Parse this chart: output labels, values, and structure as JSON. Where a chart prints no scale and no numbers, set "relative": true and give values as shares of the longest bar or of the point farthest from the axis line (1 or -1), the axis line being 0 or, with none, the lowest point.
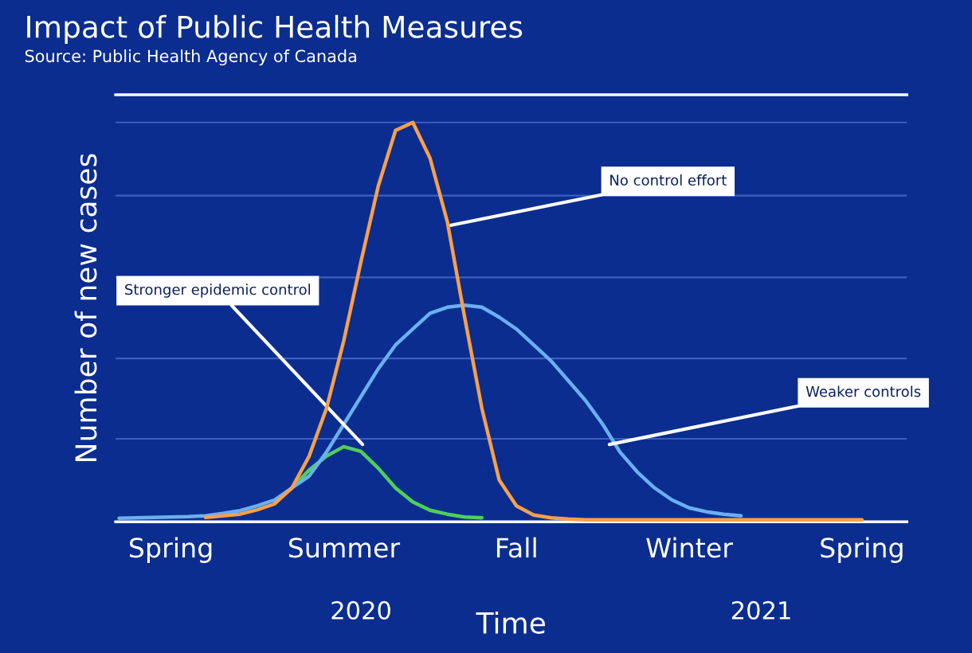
{
  "chart_data": {
    "type": "line",
    "title": "Impact of Public Health Measures",
    "subtitle": "Source: Public Health Agency of Canada",
    "xlabel": "Time",
    "ylabel": "Number of new cases",
    "relative": true,
    "legend": false,
    "ref_lines": [
      {
        "axis": "y",
        "value": 0.204,
        "color": "#3b5fc0"
      },
      {
        "axis": "y",
        "value": 0.406,
        "color": "#3b5fc0"
      },
      {
        "axis": "y",
        "value": 0.61,
        "color": "#3b5fc0"
      },
      {
        "axis": "y",
        "value": 0.816,
        "color": "#3b5fc0"
      },
      {
        "axis": "y",
        "value": 1,
        "color": "#3b5fc0"
      }
    ],
    "marker": "none",
    "line_style": "solid",
    "categories": [
      null,
      null,
      null,
      "Spring",
      null,
      null,
      null,
      null,
      null,
      null,
      null,
      null,
      null,
      "Summer",
      null,
      null,
      null,
      null,
      null,
      null,
      null,
      null,
      null,
      "Fall",
      null,
      null,
      null,
      null,
      null,
      null,
      null,
      null,
      null,
      "Winter",
      null,
      null,
      null,
      null,
      null,
      null,
      null,
      null,
      null,
      "Spring"
    ],
    "series": [
      {
        "color": "#f7a04a",
        "values": [
          null,
          null,
          null,
          null,
          null,
          0.006,
          0.01,
          0.014,
          0.025,
          0.04,
          0.08,
          0.16,
          0.28,
          0.45,
          0.65,
          0.84,
          0.98,
          1,
          0.91,
          0.75,
          0.51,
          0.28,
          0.1,
          0.035,
          0.012,
          0.005,
          0.002,
          0,
          0,
          0,
          0,
          0,
          0,
          0,
          0,
          0,
          0,
          0,
          0,
          0,
          0,
          0,
          0,
          0
        ]
      },
      {
        "color": "#6ab0f0",
        "values": [
          0.004,
          0.005,
          0.006,
          0.007,
          0.008,
          0.01,
          0.016,
          0.023,
          0.035,
          0.05,
          0.08,
          0.11,
          0.17,
          0.24,
          0.31,
          0.38,
          0.44,
          0.48,
          0.52,
          0.535,
          0.54,
          0.535,
          0.51,
          0.48,
          0.44,
          0.4,
          0.35,
          0.3,
          0.24,
          0.17,
          0.12,
          0.08,
          0.05,
          0.03,
          0.02,
          0.014,
          0.01,
          null,
          null,
          null,
          null,
          null,
          null,
          null
        ]
      },
      {
        "color": "#4fcf5a",
        "values": [
          null,
          null,
          null,
          null,
          null,
          null,
          null,
          null,
          null,
          0.046,
          0.08,
          0.125,
          0.16,
          0.184,
          0.172,
          0.13,
          0.08,
          0.045,
          0.024,
          0.014,
          0.007,
          0.005,
          null,
          null,
          null,
          null,
          null,
          null,
          null,
          null,
          null,
          null,
          null,
          null,
          null,
          null,
          null,
          null,
          null,
          null,
          null,
          null,
          null,
          null
        ]
      }
    ],
    "annotations": [
      "No control effort",
      "Weaker controls",
      "Stronger epidemic control",
      "2020",
      "2021"
    ]
  }
}
